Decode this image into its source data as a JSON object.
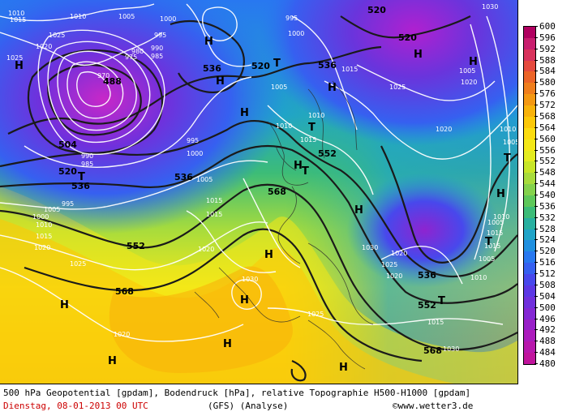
{
  "caption": {
    "line1": "500 hPa Geopotential [gpdam], Bodendruck [hPa], relative Topographie H500-H1000 [gpdam]",
    "date": "Dienstag, 08-01-2013  00 UTC",
    "model": "(GFS)  (Analyse)",
    "credit": "©www.wetter3.de"
  },
  "legend": {
    "labels": [
      "600",
      "596",
      "592",
      "588",
      "584",
      "580",
      "576",
      "572",
      "568",
      "564",
      "560",
      "556",
      "552",
      "548",
      "544",
      "540",
      "536",
      "532",
      "528",
      "524",
      "520",
      "516",
      "512",
      "508",
      "504",
      "500",
      "496",
      "492",
      "488",
      "484",
      "480"
    ],
    "colors": [
      "#b00060",
      "#c81e6e",
      "#d8325c",
      "#e54a3e",
      "#ec6428",
      "#f07e1c",
      "#f49812",
      "#f8b20a",
      "#fcc808",
      "#fcdc10",
      "#f4e818",
      "#e4ec20",
      "#c8e628",
      "#a8dc3c",
      "#84d24c",
      "#5ec85a",
      "#3cbc78",
      "#28b0a0",
      "#20a4c8",
      "#2090e0",
      "#2878f0",
      "#3660f0",
      "#4848ec",
      "#5c38e4",
      "#7030dc",
      "#8428d4",
      "#9820c8",
      "#ac1cbc",
      "#b818ac",
      "#c0149c",
      "#900080"
    ]
  },
  "map": {
    "pressure_labels": [
      "1010",
      "1005",
      "1000",
      "995",
      "1030",
      "995",
      "1000",
      "1015",
      "1020",
      "1025",
      "990",
      "985",
      "975",
      "980",
      "970",
      "1010",
      "1015",
      "1025",
      "1025",
      "1020",
      "1010",
      "1005",
      "1015",
      "1020",
      "1010",
      "1005",
      "1015",
      "1020",
      "1000",
      "995",
      "1005",
      "990",
      "985",
      "1015",
      "1010",
      "1020",
      "1015",
      "1005",
      "1000",
      "995",
      "1025",
      "1030",
      "1030",
      "1025",
      "1020",
      "1015",
      "1010",
      "1005",
      "1025",
      "1030",
      "1015",
      "1005",
      "1010",
      "1020",
      "1015",
      "1010",
      "1005",
      "1020"
    ],
    "geopotential_labels": [
      "520",
      "520",
      "536",
      "520",
      "536",
      "488",
      "504",
      "520",
      "536",
      "536",
      "552",
      "568",
      "552",
      "568",
      "536",
      "552",
      "568"
    ],
    "highs": [
      "H",
      "H",
      "H",
      "H",
      "H",
      "H",
      "H",
      "H",
      "H",
      "H",
      "H",
      "H",
      "H",
      "H",
      "H",
      "H"
    ],
    "lows": [
      "T",
      "T",
      "T",
      "T",
      "T",
      "T",
      "T"
    ]
  }
}
